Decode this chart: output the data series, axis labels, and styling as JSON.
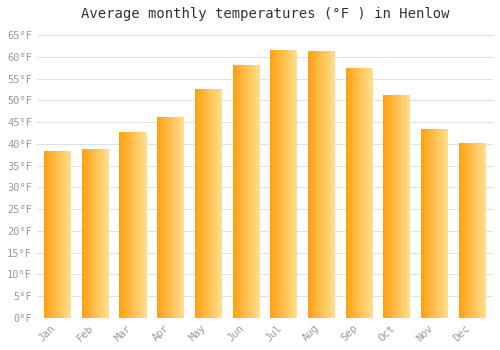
{
  "title": "Average monthly temperatures (°F ) in Henlow",
  "months": [
    "Jan",
    "Feb",
    "Mar",
    "Apr",
    "May",
    "Jun",
    "Jul",
    "Aug",
    "Sep",
    "Oct",
    "Nov",
    "Dec"
  ],
  "values": [
    38.3,
    38.7,
    42.6,
    46.2,
    52.5,
    58.0,
    61.5,
    61.3,
    57.4,
    51.3,
    43.5,
    40.1
  ],
  "bar_color_left": "#FFA010",
  "bar_color_right": "#FFE090",
  "background_color": "#ffffff",
  "grid_color": "#e0e0e8",
  "ylim": [
    0,
    67
  ],
  "yticks": [
    0,
    5,
    10,
    15,
    20,
    25,
    30,
    35,
    40,
    45,
    50,
    55,
    60,
    65
  ],
  "ytick_labels": [
    "0°F",
    "5°F",
    "10°F",
    "15°F",
    "20°F",
    "25°F",
    "30°F",
    "35°F",
    "40°F",
    "45°F",
    "50°F",
    "55°F",
    "60°F",
    "65°F"
  ],
  "title_fontsize": 10,
  "tick_fontsize": 7.5,
  "tick_color": "#999999",
  "bar_edge_color": "#cc8800",
  "font_family": "monospace"
}
